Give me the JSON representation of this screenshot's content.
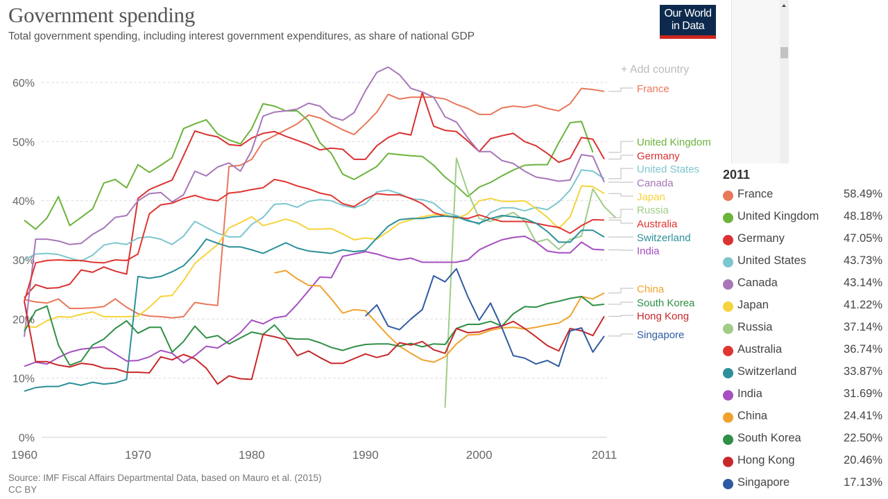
{
  "header": {
    "title": "Government spending",
    "subtitle": "Total government spending, including interest government expenditures, as share of national GDP",
    "logo_line1": "Our World",
    "logo_line2": "in Data",
    "add_country": "Add country"
  },
  "footer": {
    "source": "Source: IMF Fiscal Affairs Departmental Data, based on Mauro et al. (2015)",
    "license": "CC BY"
  },
  "legend": {
    "year": "2011",
    "items": [
      {
        "name": "France",
        "value": "58.49%",
        "color": "#e9775a"
      },
      {
        "name": "United Kingdom",
        "value": "48.18%",
        "color": "#6bb33b"
      },
      {
        "name": "Germany",
        "value": "47.05%",
        "color": "#d93231"
      },
      {
        "name": "United States",
        "value": "43.73%",
        "color": "#7dc6cf"
      },
      {
        "name": "Canada",
        "value": "43.14%",
        "color": "#a777b8"
      },
      {
        "name": "Japan",
        "value": "41.22%",
        "color": "#f5d33b"
      },
      {
        "name": "Russia",
        "value": "37.14%",
        "color": "#9fcc86"
      },
      {
        "name": "Australia",
        "value": "36.74%",
        "color": "#e03530"
      },
      {
        "name": "Switzerland",
        "value": "33.87%",
        "color": "#2c8f99"
      },
      {
        "name": "India",
        "value": "31.69%",
        "color": "#a54fc0"
      },
      {
        "name": "China",
        "value": "24.41%",
        "color": "#f0a22e"
      },
      {
        "name": "South Korea",
        "value": "22.50%",
        "color": "#2e8f45"
      },
      {
        "name": "Hong Kong",
        "value": "20.46%",
        "color": "#c8282a"
      },
      {
        "name": "Singapore",
        "value": "17.13%",
        "color": "#2f5aa0"
      }
    ]
  },
  "chart_data": {
    "type": "line",
    "title": "Government spending",
    "xlabel": "",
    "ylabel": "",
    "xlim": [
      1960,
      2011
    ],
    "ylim": [
      0,
      60
    ],
    "x_ticks": [
      "1960",
      "1970",
      "1980",
      "1990",
      "2000",
      "2011"
    ],
    "y_ticks": [
      "0%",
      "10%",
      "20%",
      "30%",
      "40%",
      "50%",
      "60%"
    ],
    "grid": true,
    "series": [
      {
        "name": "France",
        "color": "#e9775a",
        "start": 1960,
        "values": [
          23.3,
          22.9,
          22.7,
          23.4,
          21.8,
          21.8,
          21.9,
          22.1,
          23.4,
          22.0,
          20.9,
          20.5,
          20.4,
          20.2,
          20.4,
          22.8,
          22.5,
          22.3,
          45.8,
          46.0,
          47.0,
          50.0,
          51.0,
          52.0,
          53.0,
          54.5,
          54.0,
          53.0,
          52.0,
          51.2,
          53.0,
          55.0,
          58.0,
          57.2,
          57.5,
          57.5,
          57.5,
          57.2,
          56.3,
          55.6,
          54.6,
          54.6,
          55.7,
          56.0,
          55.8,
          56.2,
          55.6,
          55.2,
          56.4,
          59.0,
          58.8,
          58.49
        ]
      },
      {
        "name": "United Kingdom",
        "color": "#6bb33b",
        "start": 1960,
        "values": [
          36.7,
          35.2,
          37.1,
          40.7,
          35.8,
          37.2,
          38.6,
          43.0,
          43.6,
          42.2,
          46.1,
          44.8,
          46.0,
          47.3,
          52.2,
          53.0,
          53.7,
          51.3,
          50.3,
          49.6,
          52.2,
          56.4,
          56.0,
          55.2,
          55.2,
          53.5,
          49.8,
          48.0,
          44.5,
          43.6,
          44.7,
          45.8,
          48.0,
          47.8,
          47.6,
          47.5,
          46.0,
          44.0,
          42.5,
          40.7,
          42.3,
          43.1,
          44.2,
          45.2,
          46.0,
          46.1,
          46.1,
          49.8,
          53.2,
          53.4,
          48.18
        ]
      },
      {
        "name": "Germany",
        "color": "#d93231",
        "start": 1960,
        "values": [
          23.6,
          25.8,
          25.2,
          25.3,
          25.9,
          28.3,
          27.9,
          28.8,
          28.1,
          27.6,
          40.4,
          41.9,
          42.7,
          43.5,
          47.6,
          51.8,
          51.2,
          50.8,
          49.5,
          49.3,
          50.6,
          51.4,
          51.7,
          50.9,
          50.2,
          49.5,
          48.6,
          48.9,
          48.7,
          47.0,
          47.0,
          49.3,
          50.7,
          51.5,
          51.1,
          58.3,
          52.6,
          51.9,
          51.7,
          50.1,
          48.3,
          50.5,
          51.0,
          51.4,
          50.0,
          49.3,
          48.0,
          46.5,
          47.2,
          50.7,
          50.4,
          47.05
        ]
      },
      {
        "name": "United States",
        "color": "#7dc6cf",
        "start": 1960,
        "values": [
          30.0,
          31.0,
          31.1,
          30.9,
          30.3,
          29.8,
          30.8,
          32.5,
          32.9,
          32.6,
          33.7,
          33.9,
          33.5,
          32.6,
          34.0,
          36.5,
          35.5,
          34.5,
          33.9,
          33.9,
          36.0,
          37.2,
          39.4,
          39.5,
          38.9,
          39.9,
          40.2,
          40.0,
          39.2,
          38.8,
          39.5,
          41.5,
          41.8,
          41.2,
          40.3,
          40.2,
          39.6,
          38.0,
          37.5,
          36.8,
          36.0,
          38.0,
          38.8,
          38.8,
          38.3,
          38.9,
          38.5,
          39.8,
          41.8,
          45.2,
          45.0,
          43.73
        ]
      },
      {
        "name": "Canada",
        "color": "#a777b8",
        "start": 1960,
        "values": [
          17.0,
          33.5,
          33.5,
          33.2,
          32.6,
          32.8,
          34.3,
          35.4,
          37.2,
          37.5,
          40.0,
          41.2,
          41.4,
          39.8,
          41.0,
          45.0,
          44.2,
          45.7,
          46.4,
          45.0,
          48.5,
          54.3,
          55.0,
          55.2,
          55.5,
          56.5,
          56.0,
          54.2,
          53.6,
          54.9,
          58.6,
          61.7,
          62.6,
          61.3,
          59.0,
          58.4,
          57.5,
          54.2,
          53.3,
          50.6,
          48.3,
          48.3,
          46.8,
          46.3,
          45.0,
          44.0,
          43.7,
          43.3,
          43.5,
          47.8,
          47.5,
          43.14
        ]
      },
      {
        "name": "Japan",
        "color": "#f5d33b",
        "start": 1960,
        "values": [
          18.8,
          18.6,
          19.7,
          20.4,
          20.3,
          20.8,
          21.2,
          20.4,
          20.4,
          20.4,
          20.5,
          22.0,
          23.8,
          24.0,
          26.5,
          29.4,
          31.0,
          32.6,
          35.4,
          36.3,
          37.3,
          35.8,
          36.3,
          36.9,
          36.3,
          35.2,
          35.2,
          35.3,
          34.4,
          33.4,
          33.7,
          33.5,
          34.8,
          36.2,
          36.8,
          37.3,
          37.6,
          37.7,
          37.0,
          37.8,
          40.0,
          40.4,
          39.9,
          39.9,
          40.0,
          38.7,
          37.2,
          35.3,
          37.3,
          42.5,
          42.4,
          41.22
        ]
      },
      {
        "name": "Russia",
        "color": "#9fcc86",
        "start": 1997,
        "values": [
          5.0,
          47.2,
          41.5,
          37.0,
          36.5,
          37.3,
          38.0,
          36.6,
          33.0,
          33.5,
          31.8,
          33.5,
          34.0,
          42.0,
          39.0,
          37.14
        ]
      },
      {
        "name": "Australia",
        "color": "#e03530",
        "start": 1960,
        "values": [
          23.0,
          29.5,
          29.9,
          30.0,
          29.9,
          29.9,
          29.6,
          29.5,
          30.0,
          29.9,
          31.0,
          37.8,
          39.3,
          39.6,
          40.4,
          40.9,
          40.3,
          40.0,
          41.3,
          41.5,
          41.9,
          42.2,
          43.6,
          43.2,
          42.5,
          42.0,
          41.3,
          40.9,
          39.5,
          39.0,
          40.3,
          41.2,
          41.0,
          41.0,
          40.4,
          39.5,
          38.0,
          37.4,
          37.2,
          37.0,
          37.6,
          37.0,
          36.5,
          36.5,
          36.5,
          36.2,
          35.8,
          35.5,
          34.5,
          35.8,
          36.8,
          36.74
        ]
      },
      {
        "name": "Switzerland",
        "color": "#2c8f99",
        "start": 1960,
        "values": [
          7.8,
          8.4,
          8.6,
          8.6,
          9.2,
          8.8,
          9.3,
          9.0,
          9.2,
          9.8,
          27.2,
          26.9,
          27.2,
          28.0,
          29.0,
          31.0,
          33.5,
          32.8,
          32.2,
          32.2,
          31.7,
          31.1,
          32.0,
          32.9,
          32.0,
          31.5,
          31.3,
          31.1,
          31.7,
          31.4,
          31.6,
          33.7,
          35.7,
          36.8,
          37.0,
          37.0,
          37.3,
          37.4,
          37.3,
          36.6,
          36.2,
          37.0,
          37.5,
          37.3,
          37.0,
          36.2,
          34.8,
          33.0,
          33.0,
          35.0,
          35.0,
          33.87
        ]
      },
      {
        "name": "India",
        "color": "#a54fc0",
        "start": 1960,
        "values": [
          12.0,
          12.7,
          12.4,
          13.5,
          14.4,
          14.9,
          15.1,
          15.3,
          14.1,
          12.9,
          13.0,
          13.6,
          14.7,
          14.2,
          12.6,
          13.8,
          15.4,
          15.1,
          16.3,
          17.7,
          19.8,
          19.2,
          20.2,
          20.5,
          22.5,
          24.8,
          27.1,
          27.0,
          30.6,
          31.0,
          31.4,
          31.0,
          30.4,
          30.0,
          30.3,
          29.6,
          29.6,
          29.6,
          29.6,
          30.0,
          31.7,
          32.6,
          33.4,
          33.8,
          34.0,
          33.0,
          31.5,
          31.2,
          31.2,
          33.0,
          31.8,
          31.69
        ]
      },
      {
        "name": "China",
        "color": "#f0a22e",
        "start": 1982,
        "values": [
          27.8,
          28.2,
          26.8,
          25.7,
          25.6,
          23.4,
          21.0,
          21.6,
          21.4,
          19.3,
          17.2,
          15.4,
          14.2,
          13.1,
          12.7,
          13.6,
          15.8,
          17.3,
          17.4,
          18.1,
          18.5,
          18.6,
          18.3,
          18.6,
          19.0,
          19.3,
          20.5,
          23.8,
          23.4,
          24.41
        ]
      },
      {
        "name": "South Korea",
        "color": "#2e8f45",
        "start": 1960,
        "values": [
          17.9,
          21.4,
          22.2,
          15.6,
          12.2,
          12.9,
          15.6,
          16.6,
          18.4,
          19.7,
          17.6,
          18.6,
          18.6,
          14.4,
          16.2,
          18.8,
          16.8,
          17.2,
          15.8,
          16.8,
          17.8,
          17.4,
          19.0,
          16.8,
          16.6,
          16.6,
          16.0,
          15.2,
          14.7,
          15.3,
          15.7,
          15.8,
          15.8,
          15.4,
          15.9,
          15.3,
          15.8,
          15.7,
          18.4,
          19.1,
          19.1,
          19.6,
          18.8,
          20.9,
          22.1,
          22.0,
          22.6,
          23.0,
          23.5,
          23.8,
          22.3,
          22.5
        ]
      },
      {
        "name": "Hong Kong",
        "color": "#c8282a",
        "start": 1960,
        "values": [
          23.0,
          12.8,
          12.8,
          12.2,
          11.9,
          12.5,
          12.3,
          11.7,
          11.6,
          11.0,
          11.0,
          10.9,
          13.6,
          13.1,
          14.0,
          13.3,
          11.7,
          9.0,
          10.4,
          9.9,
          9.8,
          17.4,
          17.0,
          16.5,
          13.8,
          14.6,
          13.5,
          12.5,
          12.5,
          13.3,
          14.1,
          13.5,
          14.0,
          16.0,
          15.6,
          16.2,
          14.8,
          14.2,
          18.4,
          17.7,
          17.8,
          18.4,
          18.8,
          19.6,
          18.4,
          17.0,
          15.5,
          14.6,
          18.4,
          18.0,
          17.2,
          20.46
        ]
      },
      {
        "name": "Singapore",
        "color": "#2f5aa0",
        "start": 1990,
        "values": [
          20.5,
          22.4,
          18.8,
          18.2,
          20.0,
          21.6,
          27.3,
          26.3,
          28.5,
          23.8,
          19.8,
          22.7,
          18.5,
          13.8,
          13.4,
          12.4,
          13.0,
          12.0,
          18.0,
          18.5,
          14.4,
          17.13
        ]
      }
    ]
  }
}
